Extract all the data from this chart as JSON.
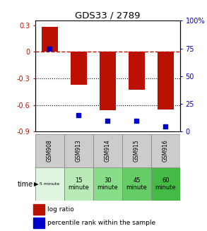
{
  "title": "GDS33 / 2789",
  "samples": [
    "GSM908",
    "GSM913",
    "GSM914",
    "GSM915",
    "GSM916"
  ],
  "time_labels_line1": [
    "5 minute",
    "15",
    "30",
    "45",
    "60"
  ],
  "time_labels_line2": [
    "",
    "minute",
    "minute",
    "minute",
    "minute"
  ],
  "log_ratios": [
    0.28,
    -0.37,
    -0.66,
    -0.43,
    -0.65
  ],
  "percentile_ranks": [
    75,
    15,
    10,
    10,
    5
  ],
  "bar_color": "#bb1100",
  "dot_color": "#0000cc",
  "ylim_left": [
    -0.9,
    0.35
  ],
  "ylim_right": [
    0,
    100
  ],
  "yticks_left": [
    0.3,
    0.0,
    -0.3,
    -0.6,
    -0.9
  ],
  "yticks_right": [
    100,
    75,
    50,
    25,
    0
  ],
  "ytick_labels_left": [
    "0.3",
    "0",
    "-0.3",
    "-0.6",
    "-0.9"
  ],
  "ytick_labels_right": [
    "100%",
    "75",
    "50",
    "25",
    "0"
  ],
  "cell_colors_time": [
    "#e0f5e0",
    "#b8ebb8",
    "#88dd88",
    "#66cc66",
    "#44bb44"
  ],
  "cell_color_gsm": "#cccccc"
}
